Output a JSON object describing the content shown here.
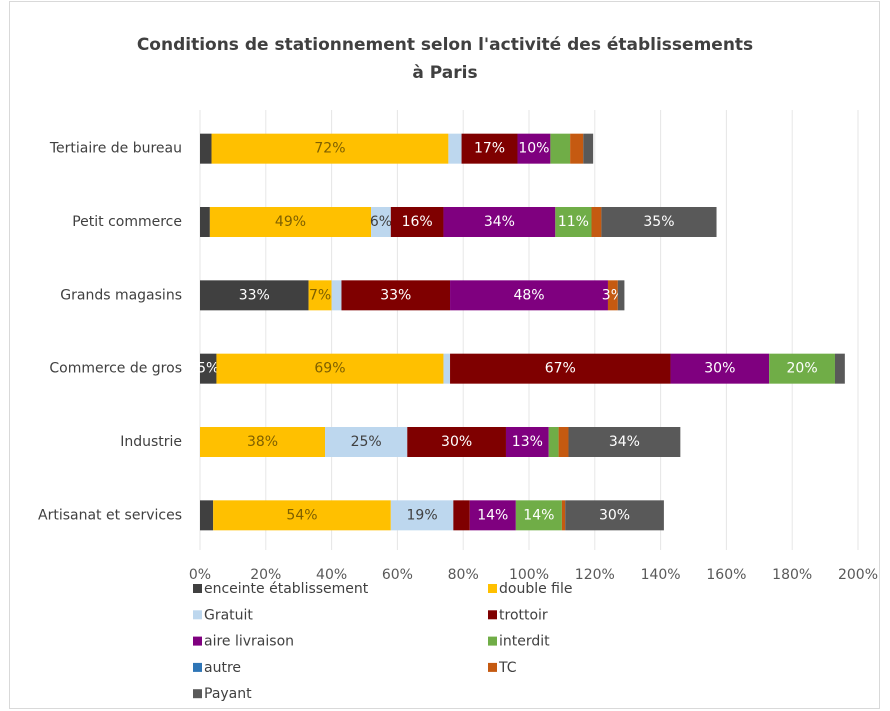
{
  "chart_data": {
    "type": "stacked-bar-horizontal",
    "title": [
      "Conditions de stationnement selon l'activité des établissements",
      "à Paris"
    ],
    "categories": [
      "Tertiaire de bureau",
      "Petit commerce",
      "Grands magasins",
      "Commerce de gros",
      "Industrie",
      "Artisanat et services"
    ],
    "series": [
      {
        "name": "enceinte établissement",
        "color": "#404040",
        "label_color": "#ffffff",
        "values": [
          3.5,
          3,
          33,
          5,
          0,
          4
        ],
        "value_labels": [
          null,
          null,
          "33%",
          "5%",
          null,
          null
        ]
      },
      {
        "name": "double file",
        "color": "#ffc000",
        "label_color": "#7f6000",
        "values": [
          72,
          49,
          7,
          69,
          38,
          54
        ],
        "value_labels": [
          "72%",
          "49%",
          "7%",
          "69%",
          "38%",
          "54%"
        ]
      },
      {
        "name": "Gratuit",
        "color": "#bdd7ee",
        "label_color": "#404040",
        "values": [
          4,
          6,
          3,
          2,
          25,
          19
        ],
        "value_labels": [
          null,
          "6%",
          null,
          null,
          "25%",
          "19%"
        ]
      },
      {
        "name": "trottoir",
        "color": "#7f0000",
        "label_color": "#ffffff",
        "values": [
          17,
          16,
          33,
          67,
          30,
          5
        ],
        "value_labels": [
          "17%",
          "16%",
          "33%",
          "67%",
          "30%",
          null
        ]
      },
      {
        "name": "aire livraison",
        "color": "#7f007f",
        "label_color": "#ffffff",
        "values": [
          10,
          34,
          48,
          30,
          13,
          14
        ],
        "value_labels": [
          "10%",
          "34%",
          "48%",
          "30%",
          "13%",
          "14%"
        ]
      },
      {
        "name": "interdit",
        "color": "#70ad47",
        "label_color": "#ffffff",
        "values": [
          6,
          11,
          0,
          20,
          3,
          14
        ],
        "value_labels": [
          null,
          "11%",
          null,
          "20%",
          null,
          "14%"
        ]
      },
      {
        "name": "autre",
        "color": "#2e75b6",
        "label_color": "#ffffff",
        "values": [
          0,
          0,
          0,
          0,
          0,
          0
        ],
        "value_labels": [
          null,
          null,
          null,
          null,
          null,
          null
        ]
      },
      {
        "name": "TC",
        "color": "#c55a11",
        "label_color": "#ffffff",
        "values": [
          4,
          3,
          3,
          0,
          3,
          1
        ],
        "value_labels": [
          null,
          null,
          "3%",
          null,
          null,
          null
        ]
      },
      {
        "name": "Payant",
        "color": "#595959",
        "label_color": "#ffffff",
        "values": [
          3,
          35,
          2,
          3,
          34,
          30
        ],
        "value_labels": [
          null,
          "35%",
          null,
          null,
          "34%",
          "30%"
        ]
      }
    ],
    "xlim": [
      0,
      200
    ],
    "xticks": [
      {
        "value": 0,
        "label": "0%"
      },
      {
        "value": 20,
        "label": "20%"
      },
      {
        "value": 40,
        "label": "40%"
      },
      {
        "value": 60,
        "label": "60%"
      },
      {
        "value": 80,
        "label": "80%"
      },
      {
        "value": 100,
        "label": "100%"
      },
      {
        "value": 120,
        "label": "120%"
      },
      {
        "value": 140,
        "label": "140%"
      },
      {
        "value": 160,
        "label": "160%"
      },
      {
        "value": 180,
        "label": "180%"
      },
      {
        "value": 200,
        "label": "200%"
      }
    ],
    "grid": true,
    "legend": "bottom"
  }
}
